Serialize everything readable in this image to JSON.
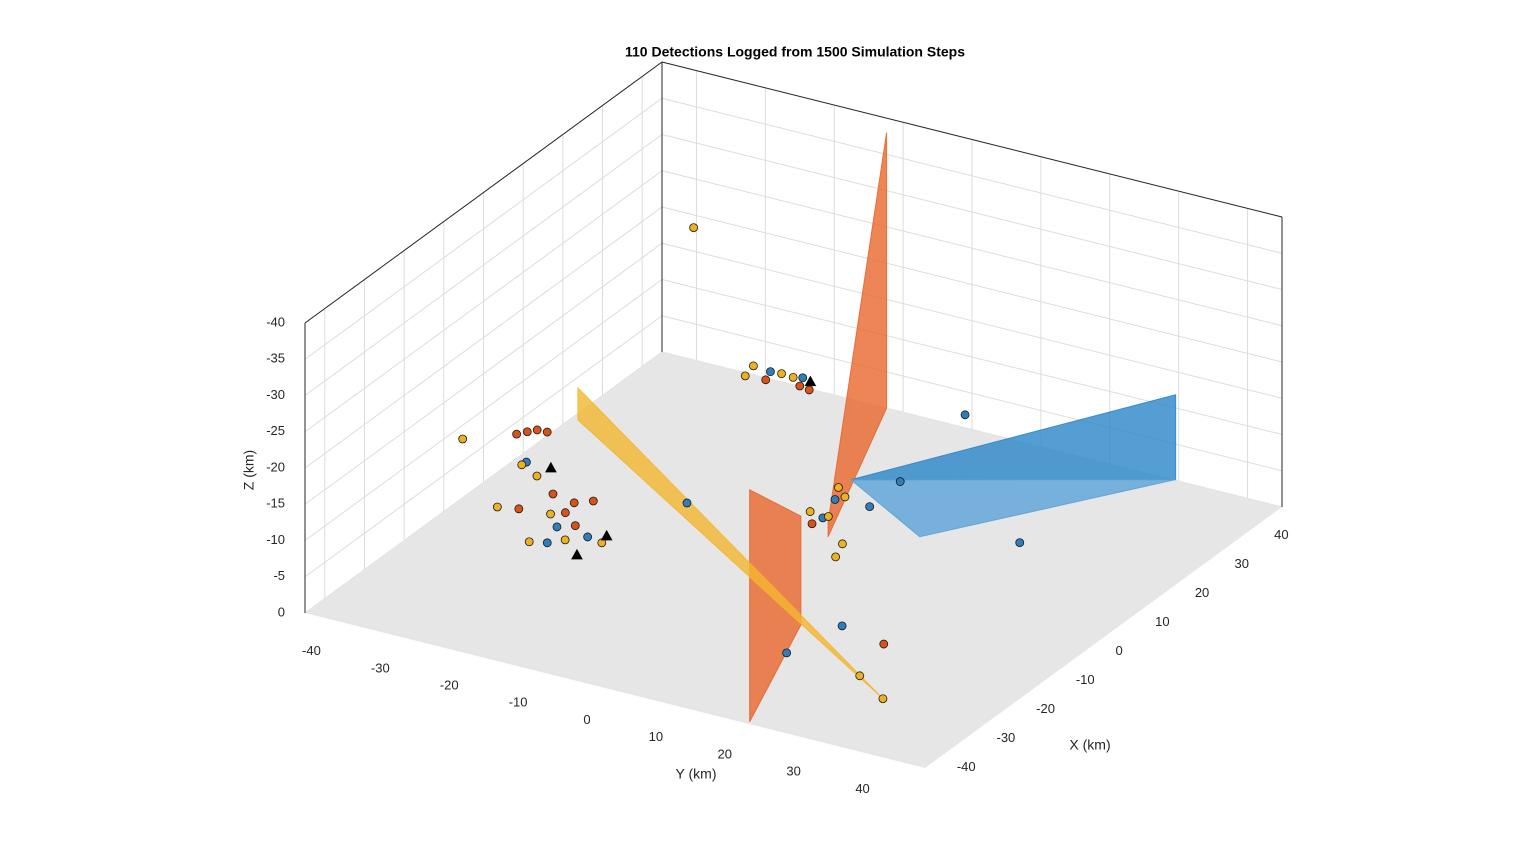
{
  "chart_data": {
    "type": "scatter3d",
    "title": "110 Detections Logged from 1500 Simulation Steps",
    "xlabel": "X (km)",
    "ylabel": "Y (km)",
    "zlabel": "Z (km)",
    "xlim": [
      -45,
      45
    ],
    "ylim": [
      -45,
      45
    ],
    "zlim": [
      -40,
      0
    ],
    "zdir": "reverse",
    "xticks": [
      -40,
      -30,
      -20,
      -10,
      0,
      10,
      20,
      30,
      40
    ],
    "yticks": [
      -40,
      -30,
      -20,
      -10,
      0,
      10,
      20,
      30,
      40
    ],
    "zticks": [
      0,
      -5,
      -10,
      -15,
      -20,
      -25,
      -30,
      -35,
      -40
    ],
    "grid": true,
    "floor_color": "#e6e6e6",
    "surfaces": [
      {
        "color": "#e8672c",
        "vertices": [
          [
            8.2,
            0.3,
            0
          ],
          [
            8.2,
            0.3,
            -2
          ],
          [
            45,
            -12.4,
            -38
          ],
          [
            45,
            -12.4,
            0
          ]
        ]
      },
      {
        "color": "#e8672c",
        "vertices": [
          [
            -16.2,
            10.4,
            0
          ],
          [
            -16.2,
            10.4,
            -15
          ],
          [
            -44.4,
            19.2,
            -32
          ],
          [
            -44.4,
            19.2,
            0
          ]
        ]
      },
      {
        "color": "#f2b630",
        "vertices": [
          [
            -29.9,
            30.2,
            0
          ],
          [
            -15.1,
            -22.6,
            -24.4
          ],
          [
            -15.1,
            -22.6,
            -20
          ]
        ]
      },
      {
        "color": "#2b86c9",
        "vertices": [
          [
            15,
            -0.3,
            -5
          ],
          [
            35.9,
            34.8,
            -16.7
          ],
          [
            35.9,
            34.8,
            -5
          ]
        ]
      },
      {
        "color": "#5aa2d8",
        "vertices": [
          [
            15,
            -0.3,
            -5
          ],
          [
            14.1,
            10.2,
            0
          ],
          [
            35.9,
            34.8,
            -5
          ]
        ]
      }
    ],
    "series": [
      {
        "color": "#2e7ebc",
        "marker": "o",
        "x": [
          29.7,
          19,
          17.7,
          9.3,
          -13.8,
          -24.3,
          -1.5,
          8.9,
          3.4,
          -6.9,
          -26.3,
          -21.6,
          -22.2,
          37.6,
          38.1
        ],
        "y": [
          7.8,
          21.9,
          5.3,
          5.7,
          15,
          13,
          -14.6,
          0.9,
          2.3,
          -34.8,
          -20.6,
          -21.9,
          -17.1,
          -25,
          -20.6
        ],
        "z": [
          -10,
          0,
          -5,
          -5,
          0,
          0,
          -5,
          -5,
          -5,
          -8,
          -8,
          -8,
          -8,
          -5,
          -5
        ]
      },
      {
        "color": "#d95319",
        "marker": "o",
        "x": [
          -7.8,
          -6.5,
          -5.4,
          -5.3,
          -13.4,
          -17.4,
          -14.3,
          -12.6,
          -19.4,
          -20.1,
          35.2,
          35.8,
          35.4,
          -15.8,
          1.2
        ],
        "y": [
          -35.7,
          -34.9,
          -34.1,
          -32.7,
          -27.2,
          -23.1,
          -23.6,
          -21.8,
          -28.7,
          -20.1,
          -24.3,
          -19.7,
          -18.1,
          22.2,
          2
        ],
        "z": [
          -12,
          -12,
          -12,
          -12,
          -8,
          -8,
          -8,
          -8,
          -8,
          -8,
          -5,
          -5,
          -5,
          0,
          -5
        ]
      },
      {
        "color": "#edb120",
        "marker": "o",
        "x": [
          23.1,
          -18.1,
          -20.3,
          -27.2,
          -7.9,
          -9.8,
          -18.7,
          -22.8,
          -24.4,
          34.9,
          38,
          37.8,
          37.6,
          12.2,
          4.2,
          10.2,
          4.1,
          7.3,
          3.5,
          -25.5,
          -29.9
        ],
        "y": [
          -27.8,
          -37.6,
          -31.3,
          -22.7,
          -34.9,
          -31.6,
          -24.5,
          -14.7,
          -19.1,
          -27.1,
          -27.7,
          -23.5,
          -21.7,
          -0.5,
          0,
          1.6,
          2.7,
          2.9,
          4.1,
          24.3,
          30.2
        ],
        "z": [
          -30,
          -15,
          -8,
          -8,
          -8,
          -8,
          -8,
          -8,
          -8,
          -5,
          -5,
          -5,
          -5,
          -5,
          -5,
          -5,
          -5,
          0,
          0,
          0,
          0
        ]
      },
      {
        "color": "#000000",
        "marker": "^",
        "x": [
          -6.8,
          -20.7,
          -27.5,
          37.6
        ],
        "y": [
          -31.3,
          -15.2,
          -15.6,
          -19.2
        ],
        "z": [
          -8,
          -8,
          -8,
          -5
        ]
      }
    ]
  }
}
